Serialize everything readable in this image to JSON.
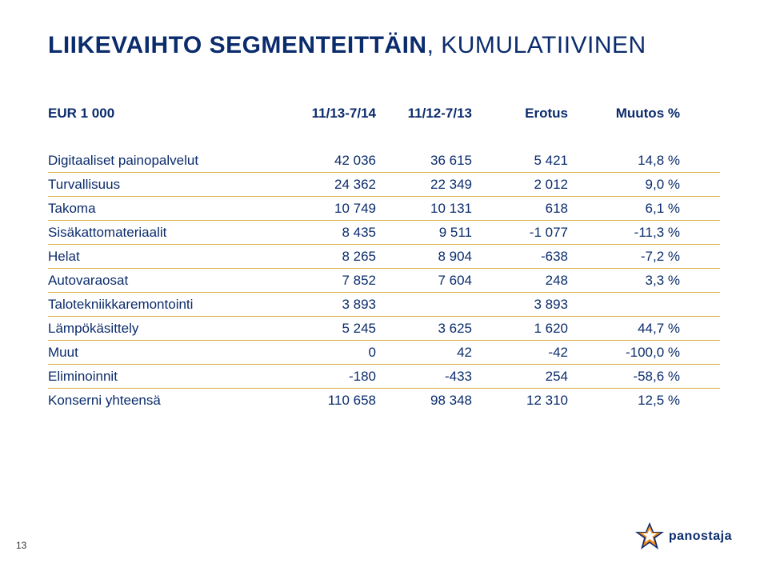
{
  "title": {
    "accent_text": "LIIKEVAIHTO SEGMENTEITTÄIN",
    "light_text": ", KUMULATIIVINEN",
    "fontsize": 30,
    "accent_color": "#0b2c6c",
    "light_color": "#0b2c6c"
  },
  "table": {
    "header_labels": [
      "EUR 1 000",
      "11/13-7/14",
      "11/12-7/13",
      "Erotus",
      "Muutos %"
    ],
    "header_color": "#0b2c6c",
    "header_fontsize": 17,
    "row_fontsize": 17,
    "row_text_color": "#0b2c6c",
    "row_border_color": "#d7ae3e",
    "rows": [
      {
        "label": "Digitaaliset painopalvelut",
        "c1": "42 036",
        "c2": "36 615",
        "c3": "5 421",
        "c4": "14,8 %"
      },
      {
        "label": "Turvallisuus",
        "c1": "24 362",
        "c2": "22 349",
        "c3": "2 012",
        "c4": "9,0 %"
      },
      {
        "label": "Takoma",
        "c1": "10 749",
        "c2": "10 131",
        "c3": "618",
        "c4": "6,1 %"
      },
      {
        "label": "Sisäkattomateriaalit",
        "c1": "8 435",
        "c2": "9 511",
        "c3": "-1 077",
        "c4": "-11,3 %"
      },
      {
        "label": "Helat",
        "c1": "8 265",
        "c2": "8 904",
        "c3": "-638",
        "c4": "-7,2 %"
      },
      {
        "label": "Autovaraosat",
        "c1": "7 852",
        "c2": "7 604",
        "c3": "248",
        "c4": "3,3 %"
      },
      {
        "label": "Talotekniikkaremontointi",
        "c1": "3 893",
        "c2": "",
        "c3": "3 893",
        "c4": ""
      },
      {
        "label": "Lämpökäsittely",
        "c1": "5 245",
        "c2": "3 625",
        "c3": "1 620",
        "c4": "44,7 %"
      },
      {
        "label": "Muut",
        "c1": "0",
        "c2": "42",
        "c3": "-42",
        "c4": "-100,0 %"
      },
      {
        "label": "Eliminoinnit",
        "c1": "-180",
        "c2": "-433",
        "c3": "254",
        "c4": "-58,6 %"
      },
      {
        "label": "Konserni yhteensä",
        "c1": "110 658",
        "c2": "98 348",
        "c3": "12 310",
        "c4": "12,5 %"
      }
    ]
  },
  "page_number": "13",
  "logo": {
    "text": "panostaja",
    "text_color": "#0b2c6c",
    "text_fontsize": 16,
    "star_color_blue": "#0b2c6c",
    "star_color_orange": "#f28c1e",
    "star_color_white": "#ffffff"
  }
}
